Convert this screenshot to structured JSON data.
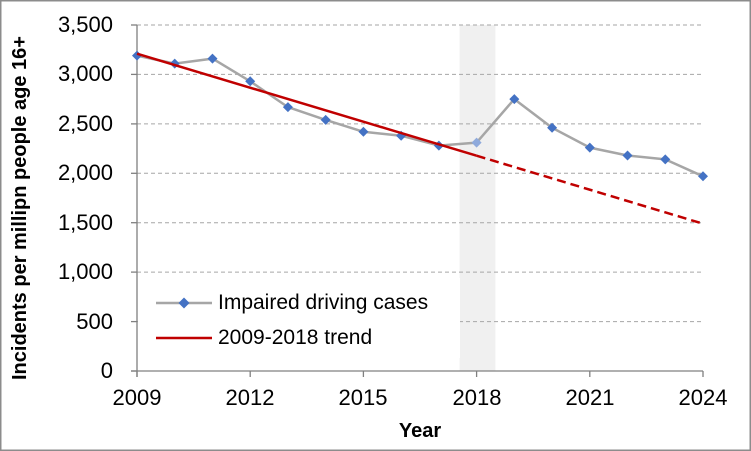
{
  "chart_data": {
    "type": "line",
    "title": "",
    "xlabel": "Year",
    "ylabel": "Incidents per millipn people age 16+",
    "xlim": [
      2009,
      2024
    ],
    "ylim": [
      0,
      3500
    ],
    "grid": "horizontal-dashed",
    "legend_position": "inside-bottom-left",
    "x_tick_values": [
      2009,
      2012,
      2015,
      2018,
      2021,
      2024
    ],
    "x_tick_labels": [
      "2009",
      "2012",
      "2015",
      "2018",
      "2021",
      "2024"
    ],
    "y_tick_values": [
      0,
      500,
      1000,
      1500,
      2000,
      2500,
      3000,
      3500
    ],
    "y_tick_labels": [
      "0",
      "500",
      "1,000",
      "1,500",
      "2,000",
      "2,500",
      "3,000",
      "3,500"
    ],
    "x": [
      2009,
      2010,
      2011,
      2012,
      2013,
      2014,
      2015,
      2016,
      2017,
      2018,
      2019,
      2020,
      2021,
      2022,
      2023,
      2024
    ],
    "series": [
      {
        "name": "Impaired driving cases",
        "type": "line-with-diamond-markers",
        "line_color": "#A6A6A6",
        "marker_color": "#4472C4",
        "values": [
          3190,
          3110,
          3160,
          2930,
          2670,
          2540,
          2420,
          2380,
          2280,
          2310,
          2750,
          2460,
          2260,
          2180,
          2140,
          1970
        ],
        "highlight_point": {
          "year": 2018,
          "marker_color": "#8FAADC"
        }
      },
      {
        "name": "2009-2018 trend",
        "type": "trend-line",
        "color": "#C00000",
        "start": {
          "year": 2009,
          "value": 3210
        },
        "end": {
          "year": 2024,
          "value": 1490
        },
        "solid_until_year": 2018,
        "dashed_extrapolation": true
      }
    ],
    "highlight_band": {
      "from_year": 2017.55,
      "to_year": 2018.5,
      "color": "#F0F0F0"
    }
  },
  "colors": {
    "gridline": "#A6A6A6",
    "axis_line": "#808080",
    "frame_border": "#8C8C8C",
    "text": "#000000",
    "series_line": "#A6A6A6",
    "marker_blue": "#4472C4",
    "marker_highlight": "#8FAADC",
    "trend_red": "#C00000",
    "band_gray": "#F0F0F0"
  }
}
